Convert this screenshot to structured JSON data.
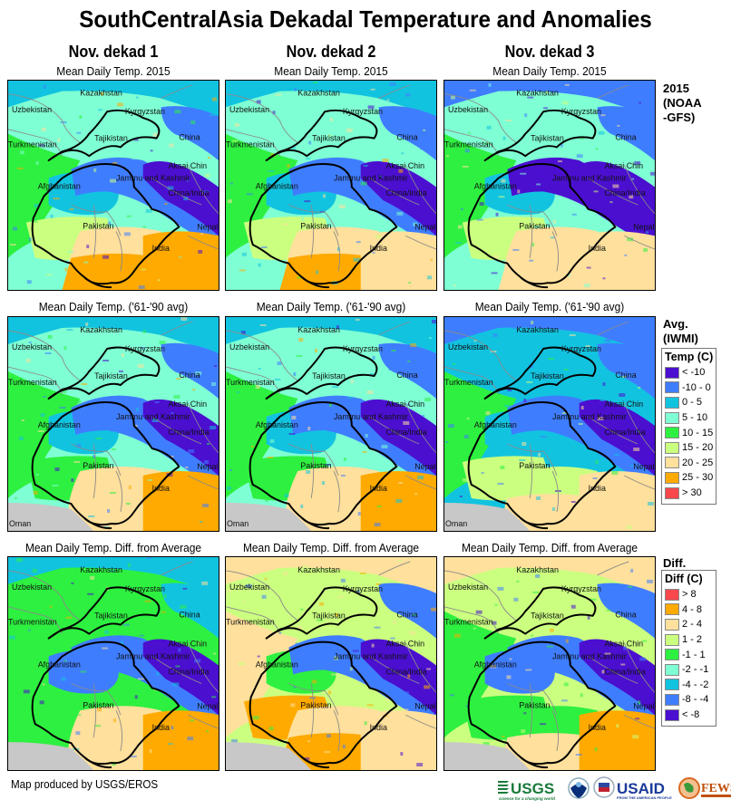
{
  "title": "SouthCentralAsia Dekadal Temperature and Anomalies",
  "columns": [
    {
      "label": "Nov. dekad 1"
    },
    {
      "label": "Nov. dekad 2"
    },
    {
      "label": "Nov. dekad 3"
    }
  ],
  "rows": [
    {
      "label_lines": [
        "2015",
        "(NOAA",
        "-GFS)"
      ],
      "panel_title": "Mean Daily Temp. 2015",
      "variable": "temperature"
    },
    {
      "label_lines": [
        "Avg.",
        "(IWMI)"
      ],
      "panel_title": "Mean Daily Temp. ('61-'90 avg)",
      "variable": "temperature"
    },
    {
      "label_lines": [
        "Diff."
      ],
      "panel_title": "Mean Daily Temp. Diff. from Average",
      "variable": "difference"
    }
  ],
  "map_labels": {
    "kazakhstan": "Kazakhstan",
    "uzbekistan": "Uzbekistan",
    "kyrgyzstan": "Kyrgyzstan",
    "tajikistan": "Tajikistan",
    "china": "China",
    "turkmenistan": "Turkmenistan",
    "aksai_chin": "Aksai Chin",
    "jammu_kashmir": "Jammu and Kashmir",
    "afghanistan": "Afghanistan",
    "china_india": "China/India",
    "pakistan": "Pakistan",
    "nepal": "Nepal",
    "india": "India",
    "oman": "Oman"
  },
  "legends": {
    "temperature": {
      "title": "Temp (C)",
      "items": [
        {
          "label": "< -10",
          "color": "#4b0fd0"
        },
        {
          "label": "-10 - 0",
          "color": "#3f7dff"
        },
        {
          "label": "0 - 5",
          "color": "#12c3e0"
        },
        {
          "label": "5 - 10",
          "color": "#7fffd4"
        },
        {
          "label": "10 - 15",
          "color": "#2ef040"
        },
        {
          "label": "15 - 20",
          "color": "#cbff80"
        },
        {
          "label": "20 - 25",
          "color": "#ffe09c"
        },
        {
          "label": "25 - 30",
          "color": "#ffaa00"
        },
        {
          "label": "> 30",
          "color": "#f8484c"
        }
      ]
    },
    "difference": {
      "title": "Diff (C)",
      "items": [
        {
          "label": "> 8",
          "color": "#f8484c"
        },
        {
          "label": "4 - 8",
          "color": "#ffaa00"
        },
        {
          "label": "2 - 4",
          "color": "#ffe09c"
        },
        {
          "label": "1 - 2",
          "color": "#cbff80"
        },
        {
          "label": "-1 - 1",
          "color": "#2ef040"
        },
        {
          "label": "-2 - -1",
          "color": "#7fffd4"
        },
        {
          "label": "-4 - -2",
          "color": "#12c3e0"
        },
        {
          "label": "-8 - -4",
          "color": "#3f7dff"
        },
        {
          "label": "< -8",
          "color": "#4b0fd0"
        }
      ]
    }
  },
  "panels": [
    {
      "id": "r1c1",
      "zones": [
        "#12c3e0",
        "#7fffd4",
        "#2ef040",
        "#3f7dff",
        "#4b0fd0",
        "#12c3e0",
        "#cbff80",
        "#ffe09c",
        "#ffaa00",
        "#ffaa00",
        "#3f7dff"
      ]
    },
    {
      "id": "r1c2",
      "zones": [
        "#12c3e0",
        "#7fffd4",
        "#2ef040",
        "#3f7dff",
        "#4b0fd0",
        "#12c3e0",
        "#cbff80",
        "#ffe09c",
        "#ffaa00",
        "#ffe09c",
        "#3f7dff"
      ]
    },
    {
      "id": "r1c3",
      "zones": [
        "#3f7dff",
        "#7fffd4",
        "#2ef040",
        "#4b0fd0",
        "#4b0fd0",
        "#12c3e0",
        "#cbff80",
        "#ffe09c",
        "#ffe09c",
        "#ffe09c",
        "#3f7dff"
      ]
    },
    {
      "id": "r2c1",
      "zones": [
        "#12c3e0",
        "#7fffd4",
        "#2ef040",
        "#3f7dff",
        "#4b0fd0",
        "#12c3e0",
        "#2ef040",
        "#ffe09c",
        "#ffe09c",
        "#ffaa00",
        "#3f7dff"
      ]
    },
    {
      "id": "r2c2",
      "zones": [
        "#12c3e0",
        "#7fffd4",
        "#2ef040",
        "#3f7dff",
        "#4b0fd0",
        "#12c3e0",
        "#2ef040",
        "#ffe09c",
        "#ffe09c",
        "#ffaa00",
        "#3f7dff"
      ]
    },
    {
      "id": "r2c3",
      "zones": [
        "#3f7dff",
        "#12c3e0",
        "#2ef040",
        "#3f7dff",
        "#4b0fd0",
        "#12c3e0",
        "#cbff80",
        "#cbff80",
        "#ffe09c",
        "#ffe09c",
        "#3f7dff"
      ]
    },
    {
      "id": "r3c1",
      "zones": [
        "#12c3e0",
        "#2ef040",
        "#2ef040",
        "#3f7dff",
        "#4b0fd0",
        "#3f7dff",
        "#2ef040",
        "#ffe09c",
        "#ffe09c",
        "#ffaa00",
        "#12c3e0"
      ]
    },
    {
      "id": "r3c2",
      "zones": [
        "#ffe09c",
        "#cbff80",
        "#ffe09c",
        "#3f7dff",
        "#4b0fd0",
        "#2ef040",
        "#ffaa00",
        "#ffe09c",
        "#ffaa00",
        "#ffe09c",
        "#3f7dff"
      ]
    },
    {
      "id": "r3c3",
      "zones": [
        "#ffe09c",
        "#cbff80",
        "#2ef040",
        "#3f7dff",
        "#4b0fd0",
        "#3f7dff",
        "#2ef040",
        "#2ef040",
        "#ffe09c",
        "#ffaa00",
        "#3f7dff"
      ]
    }
  ],
  "footer": {
    "credit": "Map produced by USGS/EROS",
    "logos": [
      {
        "name": "USGS",
        "text": "USGS",
        "tagline": "science for a changing world"
      },
      {
        "name": "NOAA",
        "text": "NOAA"
      },
      {
        "name": "USAID",
        "text": "USAID",
        "tagline": "FROM THE AMERICAN PEOPLE"
      },
      {
        "name": "FEWS NET",
        "text": "FEWS NET"
      }
    ]
  }
}
